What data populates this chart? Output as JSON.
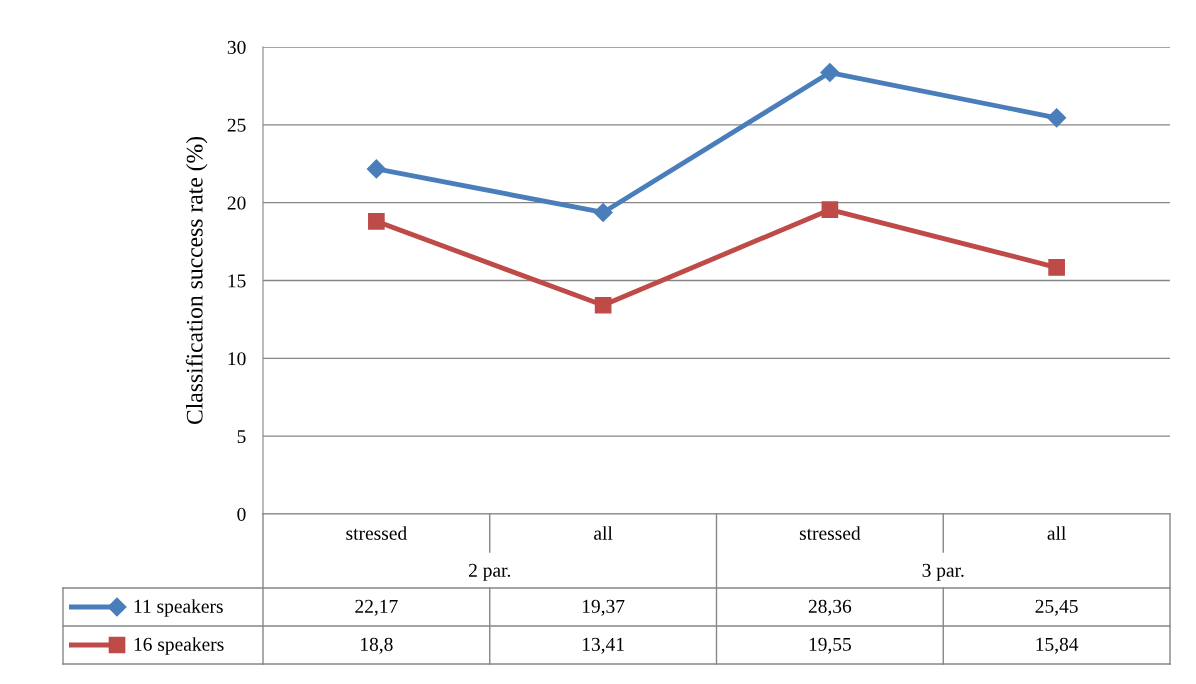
{
  "chart_data": {
    "type": "line",
    "ylabel": "Classification success rate (%)",
    "categories": [
      "stressed",
      "all",
      "stressed",
      "all"
    ],
    "annotations": [
      "2 par.",
      "3 par."
    ],
    "series": [
      {
        "name": "11 speakers",
        "color": "#4a7ebb",
        "marker": "diamond",
        "values": [
          22.17,
          19.37,
          28.36,
          25.45
        ],
        "value_labels": [
          "22,17",
          "19,37",
          "28,36",
          "25,45"
        ]
      },
      {
        "name": "16 speakers",
        "color": "#be4b48",
        "marker": "square",
        "values": [
          18.8,
          13.41,
          19.55,
          15.84
        ],
        "value_labels": [
          "18,8",
          "13,41",
          "19,55",
          "15,84"
        ]
      }
    ],
    "ylim": [
      0,
      30
    ],
    "yticks": [
      0,
      5,
      10,
      15,
      20,
      25,
      30
    ],
    "grid": "y",
    "legend": "bottom",
    "data_labels": true
  }
}
